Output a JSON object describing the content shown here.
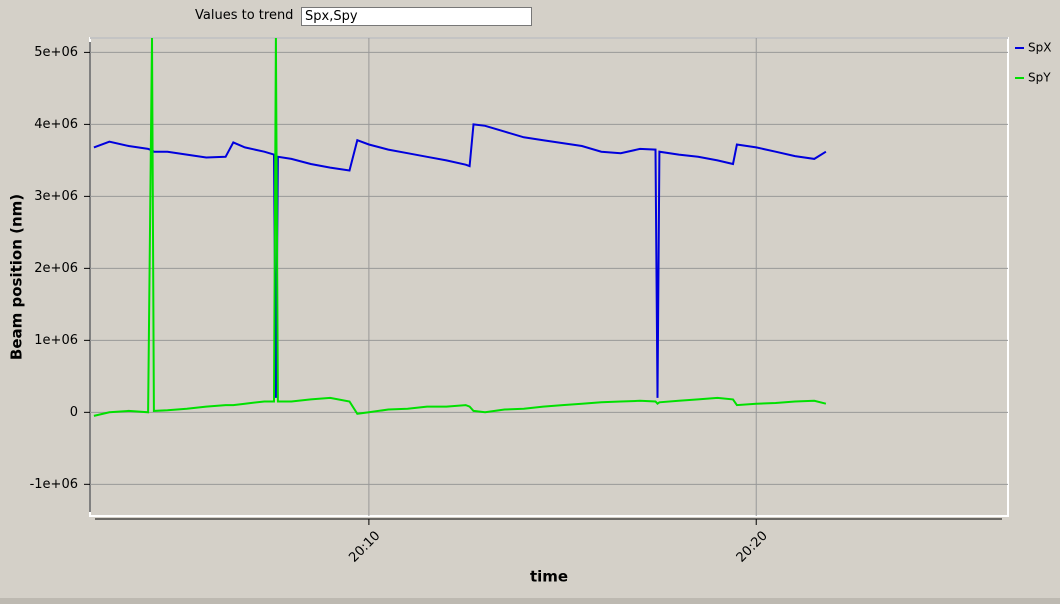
{
  "input": {
    "label": "Values to trend",
    "value": "Spx,Spy"
  },
  "chart_data": {
    "type": "line",
    "x_label": "time",
    "y_label": "Beam position (nm)",
    "x": [
      2.9,
      3.3,
      3.8,
      4.3,
      4.4,
      4.45,
      4.8,
      5.3,
      5.8,
      6.3,
      6.5,
      6.8,
      7.3,
      7.55,
      7.6,
      7.65,
      8.0,
      8.5,
      9.0,
      9.5,
      9.7,
      10.0,
      10.5,
      11.0,
      11.5,
      12.0,
      12.5,
      12.6,
      12.7,
      13.0,
      13.5,
      14.0,
      14.5,
      15.0,
      15.5,
      16.0,
      16.5,
      17.0,
      17.4,
      17.45,
      17.5,
      18.0,
      18.5,
      19.0,
      19.4,
      19.5,
      20.0,
      20.5,
      21.0,
      21.5,
      21.8
    ],
    "series": [
      {
        "name": "SpX",
        "color": "#0000dd",
        "values": [
          3680000,
          3760000,
          3700000,
          3660000,
          3640000,
          3620000,
          3620000,
          3580000,
          3540000,
          3550000,
          3750000,
          3680000,
          3620000,
          3580000,
          200000,
          3550000,
          3520000,
          3450000,
          3400000,
          3360000,
          3780000,
          3720000,
          3650000,
          3600000,
          3550000,
          3500000,
          3440000,
          3420000,
          4000000,
          3980000,
          3900000,
          3820000,
          3780000,
          3740000,
          3700000,
          3620000,
          3600000,
          3660000,
          3650000,
          200000,
          3620000,
          3580000,
          3550000,
          3500000,
          3450000,
          3720000,
          3680000,
          3620000,
          3560000,
          3520000,
          3620000
        ]
      },
      {
        "name": "SpY",
        "color": "#00e000",
        "values": [
          -50000,
          0,
          20000,
          0,
          5200000,
          20000,
          30000,
          50000,
          80000,
          100000,
          100000,
          120000,
          150000,
          150000,
          5200000,
          150000,
          150000,
          180000,
          200000,
          150000,
          -20000,
          0,
          40000,
          50000,
          80000,
          80000,
          100000,
          80000,
          20000,
          0,
          40000,
          50000,
          80000,
          100000,
          120000,
          140000,
          150000,
          160000,
          150000,
          120000,
          140000,
          160000,
          180000,
          200000,
          180000,
          100000,
          120000,
          130000,
          150000,
          160000,
          120000
        ]
      }
    ],
    "xlim": [
      2.8,
      26.5
    ],
    "xticks": [
      {
        "value": 10,
        "label": "20:10"
      },
      {
        "value": 20,
        "label": "20:20"
      }
    ],
    "ylim": [
      -1440000,
      5200000
    ],
    "yticks": [
      {
        "value": 5000000,
        "label": "5e+06"
      },
      {
        "value": 4000000,
        "label": "4e+06"
      },
      {
        "value": 3000000,
        "label": "3e+06"
      },
      {
        "value": 2000000,
        "label": "2e+06"
      },
      {
        "value": 1000000,
        "label": "1e+06"
      },
      0,
      {
        "value": -1000000,
        "label": "-1e+06"
      }
    ],
    "grid": true
  }
}
